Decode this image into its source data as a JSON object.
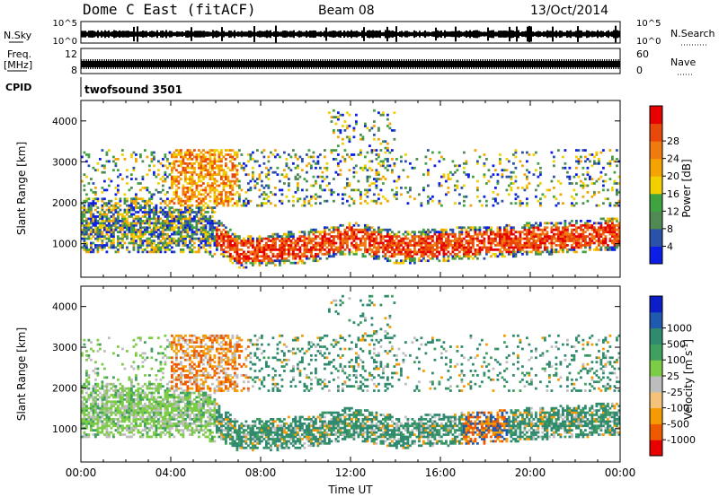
{
  "header": {
    "radar": "Dome C East (fitACF)",
    "beam": "Beam 08",
    "date": "13/Oct/2014"
  },
  "strips": {
    "nsky": {
      "left_label": "N.Sky",
      "right_label": "N.Search",
      "ticks": [
        "10^5",
        "10^0"
      ]
    },
    "freq": {
      "left_label_1": "Freq.",
      "left_label_2": "[MHz]",
      "left_ticks": [
        "12",
        "8"
      ],
      "right_label": "Nave",
      "right_ticks": [
        "60",
        "0"
      ]
    },
    "cpid": {
      "label": "CPID",
      "value": "twofsound 3501"
    }
  },
  "colors": {
    "power": [
      "#0a1ee6",
      "#2a52a8",
      "#4f8a52",
      "#3fa33f",
      "#f2d000",
      "#f5a300",
      "#f07a10",
      "#e8480a",
      "#e60000"
    ],
    "velocity": [
      "#e60000",
      "#ef5a00",
      "#f59a00",
      "#f5c27a",
      "#bdbdbd",
      "#7dcc46",
      "#3fa060",
      "#2f8a70",
      "#1f5ab0",
      "#0c1ec8"
    ]
  },
  "chart_data": [
    {
      "type": "heatmap",
      "title": "Power",
      "xlabel": "",
      "ylabel": "Slant Range [km]",
      "x_tick_labels": [
        "00:00",
        "04:00",
        "08:00",
        "12:00",
        "16:00",
        "20:00",
        "00:00"
      ],
      "x_range_hours": [
        0,
        24
      ],
      "y_ticks": [
        "1000",
        "2000",
        "3000",
        "4000"
      ],
      "ylim": [
        180,
        4500
      ],
      "colorbar": {
        "label": "Power [dB]",
        "tick_labels": [
          "4",
          "8",
          "12",
          "16",
          "20",
          "24",
          "28"
        ],
        "range": [
          0,
          30
        ]
      }
    },
    {
      "type": "heatmap",
      "title": "Velocity",
      "xlabel": "Time UT",
      "ylabel": "Slant Range [km]",
      "x_tick_labels": [
        "00:00",
        "04:00",
        "08:00",
        "12:00",
        "16:00",
        "20:00",
        "00:00"
      ],
      "x_range_hours": [
        0,
        24
      ],
      "y_ticks": [
        "1000",
        "2000",
        "3000",
        "4000"
      ],
      "ylim": [
        180,
        4500
      ],
      "colorbar": {
        "label": "Velocity [m s",
        "label_sup": "-1",
        "label_end": "]",
        "tick_labels": [
          "-1000",
          "-500",
          "-100",
          "-25",
          "25",
          "100",
          "500",
          "1000"
        ]
      }
    }
  ]
}
